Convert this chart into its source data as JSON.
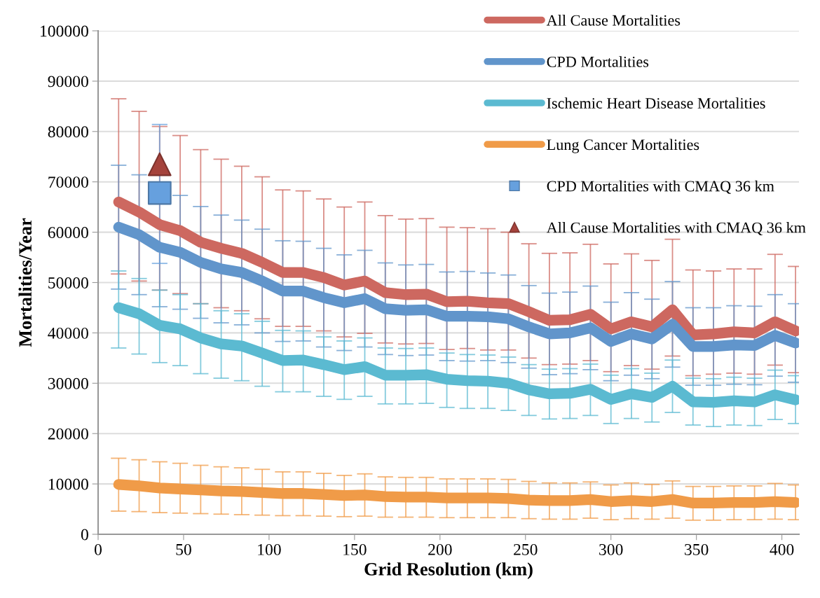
{
  "chart_data": {
    "type": "line",
    "xlabel": "Grid Resolution (km)",
    "ylabel": "Mortalities/Year",
    "x": [
      12,
      24,
      36,
      48,
      60,
      72,
      84,
      96,
      108,
      120,
      132,
      144,
      156,
      168,
      180,
      192,
      204,
      216,
      228,
      240,
      252,
      264,
      276,
      288,
      300,
      312,
      324,
      336,
      348,
      360,
      372,
      384,
      396,
      408
    ],
    "xlim": [
      0,
      410
    ],
    "xticks": [
      0,
      50,
      100,
      150,
      200,
      250,
      300,
      350,
      400
    ],
    "ylim": [
      0,
      100000
    ],
    "yticks": [
      0,
      10000,
      20000,
      30000,
      40000,
      50000,
      60000,
      70000,
      80000,
      90000,
      100000
    ],
    "grid": "y",
    "legend": "top right",
    "line_style": "solid",
    "series": [
      {
        "name": "All Cause Mortalities",
        "color": "#cd6860",
        "values": [
          66000,
          64000,
          61500,
          60300,
          58000,
          56800,
          55800,
          54000,
          52000,
          52000,
          51000,
          49500,
          50300,
          48000,
          47600,
          47700,
          46200,
          46300,
          46000,
          45800,
          44200,
          42500,
          42600,
          43700,
          40800,
          42200,
          41200,
          44600,
          39600,
          39800,
          40200,
          40000,
          42200,
          40400
        ],
        "errors": [
          [
            51700,
            86500
          ],
          [
            50300,
            84000
          ],
          [
            48500,
            81000
          ],
          [
            47800,
            79200
          ],
          [
            45800,
            76400
          ],
          [
            45000,
            74500
          ],
          [
            44400,
            73100
          ],
          [
            42800,
            71000
          ],
          [
            41300,
            68400
          ],
          [
            41300,
            68200
          ],
          [
            40400,
            66600
          ],
          [
            39200,
            65000
          ],
          [
            39900,
            66000
          ],
          [
            38000,
            63300
          ],
          [
            37800,
            62600
          ],
          [
            37900,
            62700
          ],
          [
            36700,
            61000
          ],
          [
            36900,
            60900
          ],
          [
            36600,
            60700
          ],
          [
            36600,
            60000
          ],
          [
            35000,
            57700
          ],
          [
            33700,
            55800
          ],
          [
            33800,
            55900
          ],
          [
            34500,
            57600
          ],
          [
            32300,
            53700
          ],
          [
            33500,
            55700
          ],
          [
            32800,
            54400
          ],
          [
            35400,
            58600
          ],
          [
            31500,
            52500
          ],
          [
            31800,
            52300
          ],
          [
            32000,
            52700
          ],
          [
            31800,
            52700
          ],
          [
            33600,
            55600
          ],
          [
            32100,
            53200
          ]
        ]
      },
      {
        "name": "CPD Mortalities",
        "color": "#6195cb",
        "values": [
          61000,
          59500,
          57000,
          56000,
          54000,
          52700,
          52000,
          50300,
          48300,
          48300,
          47000,
          46000,
          46800,
          44800,
          44500,
          44600,
          43300,
          43300,
          43200,
          42800,
          41200,
          39800,
          40000,
          41000,
          38300,
          39800,
          38800,
          41700,
          37300,
          37300,
          37600,
          37500,
          39500,
          38000
        ],
        "errors": [
          [
            48700,
            73300
          ],
          [
            47600,
            71400
          ],
          [
            45200,
            57000
          ],
          [
            44700,
            67300
          ],
          [
            42900,
            65100
          ],
          [
            42000,
            63400
          ],
          [
            41600,
            62400
          ],
          [
            40000,
            60600
          ],
          [
            38300,
            58300
          ],
          [
            38400,
            58200
          ],
          [
            37200,
            56800
          ],
          [
            36500,
            55500
          ],
          [
            37200,
            56400
          ],
          [
            35700,
            53900
          ],
          [
            35500,
            53500
          ],
          [
            35600,
            53600
          ],
          [
            34500,
            52100
          ],
          [
            34400,
            52200
          ],
          [
            34500,
            51900
          ],
          [
            34100,
            51500
          ],
          [
            33000,
            49400
          ],
          [
            31700,
            47900
          ],
          [
            31900,
            48100
          ],
          [
            32700,
            49300
          ],
          [
            30500,
            46100
          ],
          [
            31600,
            48000
          ],
          [
            30900,
            46700
          ],
          [
            33200,
            50200
          ],
          [
            29600,
            45000
          ],
          [
            29600,
            45000
          ],
          [
            29800,
            45400
          ],
          [
            29700,
            45300
          ],
          [
            31400,
            47600
          ],
          [
            30200,
            45800
          ]
        ]
      },
      {
        "name": "Ischemic Heart Disease Mortalities",
        "color": "#5bbad1",
        "values": [
          45000,
          43800,
          41500,
          40800,
          39000,
          37800,
          37400,
          36000,
          34500,
          34600,
          33700,
          32700,
          33300,
          31600,
          31600,
          31700,
          30800,
          30500,
          30400,
          30000,
          28700,
          27900,
          28000,
          28800,
          26800,
          27900,
          27200,
          29400,
          26300,
          26200,
          26500,
          26300,
          27700,
          26700
        ],
        "errors": [
          [
            37000,
            52300
          ],
          [
            35800,
            50800
          ],
          [
            34100,
            48500
          ],
          [
            33500,
            47600
          ],
          [
            31900,
            45800
          ],
          [
            31000,
            44400
          ],
          [
            30500,
            43800
          ],
          [
            29400,
            42300
          ],
          [
            28300,
            40500
          ],
          [
            28300,
            40400
          ],
          [
            27400,
            39200
          ],
          [
            26800,
            38400
          ],
          [
            27400,
            39000
          ],
          [
            25900,
            37000
          ],
          [
            25900,
            36900
          ],
          [
            26000,
            37000
          ],
          [
            25200,
            36000
          ],
          [
            25000,
            35700
          ],
          [
            25000,
            35600
          ],
          [
            24600,
            35200
          ],
          [
            23600,
            33700
          ],
          [
            22900,
            32800
          ],
          [
            23000,
            32900
          ],
          [
            23600,
            33800
          ],
          [
            22000,
            31600
          ],
          [
            23000,
            32900
          ],
          [
            22300,
            32000
          ],
          [
            24200,
            34600
          ],
          [
            21700,
            31000
          ],
          [
            21400,
            30900
          ],
          [
            21700,
            31200
          ],
          [
            21600,
            31000
          ],
          [
            22800,
            32600
          ],
          [
            22000,
            31500
          ]
        ]
      },
      {
        "name": "Lung Cancer Mortalities",
        "color": "#f09b48",
        "values": [
          9900,
          9600,
          9200,
          9000,
          8800,
          8600,
          8500,
          8300,
          8100,
          8100,
          7900,
          7700,
          7800,
          7500,
          7400,
          7400,
          7200,
          7200,
          7200,
          7100,
          6800,
          6700,
          6700,
          6900,
          6500,
          6700,
          6500,
          6900,
          6200,
          6200,
          6300,
          6300,
          6500,
          6300
        ],
        "errors": [
          [
            4600,
            15100
          ],
          [
            4500,
            14800
          ],
          [
            4300,
            14400
          ],
          [
            4200,
            14100
          ],
          [
            4100,
            13700
          ],
          [
            4000,
            13400
          ],
          [
            3900,
            13200
          ],
          [
            3800,
            12900
          ],
          [
            3700,
            12400
          ],
          [
            3700,
            12400
          ],
          [
            3600,
            12100
          ],
          [
            3500,
            11700
          ],
          [
            3600,
            12000
          ],
          [
            3400,
            11400
          ],
          [
            3400,
            11300
          ],
          [
            3400,
            11300
          ],
          [
            3300,
            11000
          ],
          [
            3300,
            11000
          ],
          [
            3300,
            11000
          ],
          [
            3300,
            10900
          ],
          [
            3100,
            10500
          ],
          [
            3000,
            10200
          ],
          [
            3000,
            10200
          ],
          [
            3200,
            10400
          ],
          [
            2900,
            9800
          ],
          [
            3100,
            10200
          ],
          [
            3000,
            9900
          ],
          [
            3200,
            10600
          ],
          [
            2800,
            9500
          ],
          [
            2800,
            9500
          ],
          [
            2900,
            9600
          ],
          [
            2900,
            9600
          ],
          [
            3000,
            10100
          ],
          [
            2900,
            9800
          ]
        ]
      },
      {
        "name": "CPD Mortalities with CMAQ 36 km",
        "type": "scatter",
        "marker": "square",
        "color": "#66a0de",
        "x": [
          36
        ],
        "values": [
          67800
        ],
        "errors": [
          [
            53800,
            81400
          ]
        ]
      },
      {
        "name": "All Cause Mortalities with CMAQ 36 km",
        "type": "scatter",
        "marker": "triangle",
        "color": "#a5433c",
        "x": [
          36
        ],
        "values": [
          73500
        ]
      }
    ]
  }
}
